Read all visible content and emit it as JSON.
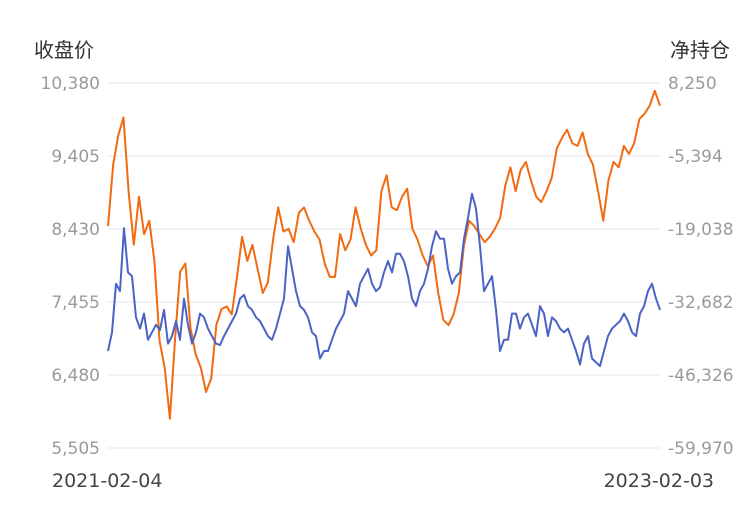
{
  "chart_data": {
    "type": "line",
    "left_axis_title": "收盘价",
    "right_axis_title": "净持仓",
    "x_start_label": "2021-02-04",
    "x_end_label": "2023-02-03",
    "left_ticks": [
      "10,380",
      "9,405",
      "8,430",
      "7,455",
      "6,480",
      "5,505"
    ],
    "right_ticks": [
      "8,250",
      "-5,394",
      "-19,038",
      "-32,682",
      "-46,326",
      "-59,970"
    ],
    "left_range": [
      5505,
      10380
    ],
    "right_range": [
      -59970,
      8250
    ],
    "grid": true,
    "colors": {
      "close": "#4a63c4",
      "net_position": "#f26a10",
      "grid": "#e4e6ee"
    },
    "series": [
      {
        "name": "",
        "axis": "left",
        "color": "#4a63c4",
        "values": [
          6800,
          7050,
          7700,
          7600,
          8440,
          7850,
          7800,
          7250,
          7100,
          7300,
          6950,
          7050,
          7150,
          7080,
          7350,
          6900,
          7000,
          7200,
          6950,
          7500,
          7150,
          6900,
          7050,
          7300,
          7250,
          7100,
          7000,
          6900,
          6880,
          7000,
          7100,
          7200,
          7300,
          7500,
          7550,
          7400,
          7350,
          7250,
          7200,
          7100,
          7000,
          6950,
          7100,
          7300,
          7500,
          8200,
          7900,
          7600,
          7400,
          7350,
          7250,
          7050,
          7000,
          6700,
          6800,
          6800,
          6950,
          7100,
          7200,
          7300,
          7600,
          7500,
          7400,
          7700,
          7800,
          7900,
          7700,
          7600,
          7650,
          7850,
          8000,
          7850,
          8100,
          8100,
          8000,
          7800,
          7500,
          7400,
          7600,
          7700,
          7900,
          8200,
          8400,
          8300,
          8300,
          7900,
          7700,
          7800,
          7850,
          8300,
          8580,
          8900,
          8700,
          8200,
          7600,
          7700,
          7800,
          7350,
          6800,
          6950,
          6950,
          7300,
          7300,
          7100,
          7250,
          7300,
          7150,
          7000,
          7400,
          7300,
          7000,
          7250,
          7200,
          7100,
          7050,
          7100,
          6950,
          6800,
          6620,
          6900,
          7000,
          6700,
          6650,
          6600,
          6800,
          7000,
          7100,
          7150,
          7200,
          7300,
          7200,
          7050,
          7000,
          7300,
          7400,
          7600,
          7700,
          7500,
          7350
        ]
      },
      {
        "name": "",
        "axis": "right",
        "color": "#f26a10",
        "values": [
          -18500,
          -7000,
          -1500,
          1800,
          -12000,
          -22000,
          -13000,
          -20000,
          -17500,
          -25000,
          -40000,
          -45000,
          -54500,
          -39500,
          -27000,
          -25500,
          -37500,
          -42500,
          -45000,
          -49500,
          -47000,
          -37000,
          -34000,
          -33500,
          -35000,
          -28000,
          -20500,
          -25000,
          -22000,
          -26500,
          -31000,
          -29000,
          -21000,
          -15000,
          -19500,
          -19000,
          -21500,
          -16000,
          -15000,
          -17500,
          -19500,
          -21000,
          -25500,
          -28000,
          -28000,
          -20000,
          -23000,
          -21000,
          -15000,
          -19000,
          -22000,
          -24000,
          -23000,
          -12000,
          -9000,
          -15000,
          -15500,
          -13000,
          -11500,
          -19000,
          -21000,
          -24000,
          -26000,
          -24000,
          -31000,
          -36000,
          -37000,
          -35000,
          -31000,
          -22000,
          -17500,
          -18500,
          -20000,
          -21500,
          -20500,
          -19000,
          -17000,
          -11000,
          -7500,
          -12000,
          -8000,
          -6500,
          -10000,
          -13000,
          -14000,
          -12000,
          -9500,
          -4000,
          -2000,
          -500,
          -3000,
          -3500,
          -1000,
          -5000,
          -7000,
          -12000,
          -17500,
          -10000,
          -6500,
          -7500,
          -3500,
          -5000,
          -3000,
          1500,
          2500,
          4000,
          6800,
          4000
        ]
      }
    ]
  }
}
